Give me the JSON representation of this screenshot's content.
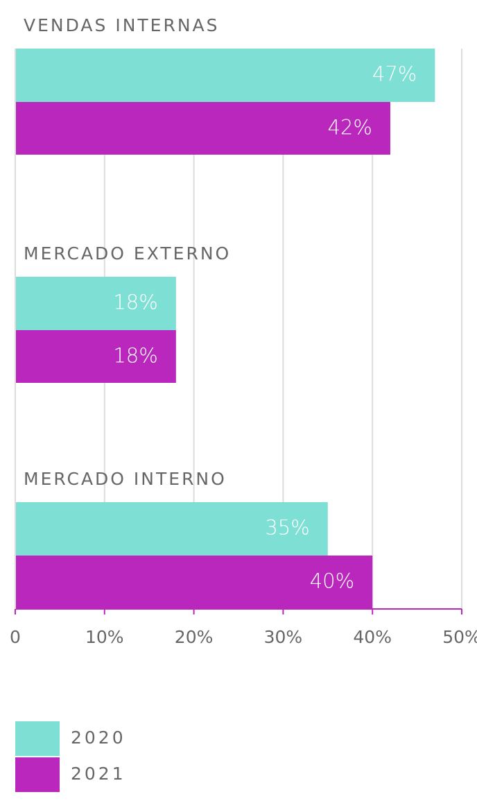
{
  "chart_data": {
    "type": "bar",
    "orientation": "horizontal",
    "categories": [
      "VENDAS INTERNAS",
      "MERCADO EXTERNO",
      "MERCADO INTERNO"
    ],
    "series": [
      {
        "name": "2020",
        "color": "#7edfd4",
        "values": [
          47,
          18,
          35
        ],
        "value_labels": [
          "47%",
          "18%",
          "35%"
        ]
      },
      {
        "name": "2021",
        "color": "#b927bd",
        "values": [
          42,
          18,
          40
        ],
        "value_labels": [
          "42%",
          "18%",
          "40%"
        ]
      }
    ],
    "xlim": [
      0,
      50
    ],
    "xticks": [
      0,
      {
        "value": 10,
        "label": "10%"
      },
      {
        "value": 20,
        "label": "20%"
      },
      {
        "value": 30,
        "label": "30%"
      },
      {
        "value": 40,
        "label": "40%"
      },
      {
        "value": 50,
        "label": "50%"
      }
    ],
    "grid": true,
    "legend": "bottom-left"
  }
}
